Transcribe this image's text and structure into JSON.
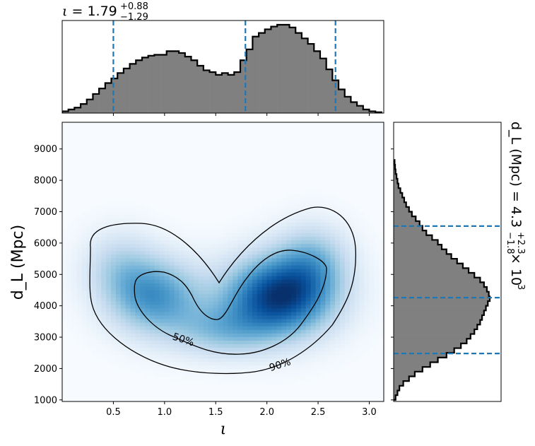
{
  "chart_data": [
    {
      "panel": "top-marginal",
      "type": "histogram",
      "title": "ι = 1.79 +0.88 −1.29",
      "title_parts": {
        "symbol": "ι",
        "median": "1.79",
        "plus": "+0.88",
        "minus": "−1.29"
      },
      "xlim": [
        0,
        3.14159
      ],
      "fill_color": "#808080",
      "edge_color": "#000000",
      "quantile_lines": [
        0.5,
        1.79,
        2.67
      ],
      "quantile_color": "#1f77b4",
      "bins_x": [
        0.0,
        0.06,
        0.12,
        0.18,
        0.24,
        0.3,
        0.36,
        0.42,
        0.48,
        0.54,
        0.6,
        0.66,
        0.72,
        0.78,
        0.84,
        0.9,
        0.96,
        1.02,
        1.08,
        1.14,
        1.2,
        1.26,
        1.32,
        1.38,
        1.44,
        1.5,
        1.56,
        1.62,
        1.68,
        1.74,
        1.8,
        1.86,
        1.92,
        1.98,
        2.04,
        2.1,
        2.16,
        2.22,
        2.28,
        2.34,
        2.4,
        2.46,
        2.52,
        2.58,
        2.64,
        2.7,
        2.76,
        2.82,
        2.88,
        2.94,
        3.0,
        3.06,
        3.12
      ],
      "density": [
        0.02,
        0.04,
        0.06,
        0.1,
        0.15,
        0.21,
        0.27,
        0.33,
        0.38,
        0.44,
        0.49,
        0.54,
        0.58,
        0.61,
        0.63,
        0.64,
        0.64,
        0.68,
        0.68,
        0.66,
        0.62,
        0.58,
        0.52,
        0.47,
        0.45,
        0.42,
        0.44,
        0.42,
        0.45,
        0.58,
        0.7,
        0.84,
        0.88,
        0.92,
        0.95,
        0.97,
        0.97,
        0.94,
        0.88,
        0.82,
        0.76,
        0.68,
        0.6,
        0.48,
        0.36,
        0.26,
        0.18,
        0.12,
        0.08,
        0.04,
        0.02,
        0.01
      ]
    },
    {
      "panel": "joint",
      "type": "heatmap",
      "xlabel": "ι",
      "ylabel": "d_L (Mpc)",
      "xlim": [
        0,
        3.14159
      ],
      "ylim": [
        950,
        9850
      ],
      "xticks": [
        0.5,
        1.0,
        1.5,
        2.0,
        2.5,
        3.0
      ],
      "xtick_labels": [
        "0.5",
        "1.0",
        "1.5",
        "2.0",
        "2.5",
        "3.0"
      ],
      "yticks": [
        1000,
        2000,
        3000,
        4000,
        5000,
        6000,
        7000,
        8000,
        9000
      ],
      "ytick_labels": [
        "1000",
        "2000",
        "3000",
        "4000",
        "5000",
        "6000",
        "7000",
        "8000",
        "9000"
      ],
      "colormap": "Blues",
      "density_peaks": [
        {
          "x": 2.12,
          "y": 4300,
          "weight": 1.0
        },
        {
          "x": 0.9,
          "y": 4300,
          "weight": 0.62
        }
      ],
      "contours": [
        {
          "level": "50%",
          "label": "50%"
        },
        {
          "level": "90%",
          "label": "90%"
        }
      ]
    },
    {
      "panel": "right-marginal",
      "type": "histogram",
      "orientation": "horizontal",
      "title": "d_L (Mpc) = 4.3 +2.3 −1.8 × 10^3",
      "title_parts": {
        "symbol": "d_L (Mpc) = 4.3",
        "plus": "+2.3",
        "minus": "−1.8",
        "suffix": "× 10",
        "exponent": "3"
      },
      "ylim": [
        950,
        9850
      ],
      "fill_color": "#808080",
      "edge_color": "#000000",
      "quantile_lines": [
        2480,
        4260,
        6540
      ],
      "quantile_color": "#1f77b4",
      "bins_y": [
        1000,
        1150,
        1300,
        1450,
        1600,
        1750,
        1900,
        2050,
        2200,
        2350,
        2500,
        2650,
        2800,
        2950,
        3100,
        3250,
        3400,
        3550,
        3700,
        3850,
        4000,
        4150,
        4300,
        4450,
        4600,
        4750,
        4900,
        5050,
        5200,
        5350,
        5500,
        5650,
        5800,
        5950,
        6100,
        6250,
        6400,
        6550,
        6700,
        6850,
        7000,
        7150,
        7300,
        7450,
        7600,
        7750,
        7900,
        8050,
        8200,
        8350,
        8500,
        8650
      ],
      "density": [
        0.02,
        0.04,
        0.06,
        0.1,
        0.16,
        0.22,
        0.3,
        0.38,
        0.46,
        0.55,
        0.63,
        0.7,
        0.76,
        0.8,
        0.84,
        0.87,
        0.9,
        0.92,
        0.94,
        0.96,
        0.98,
        1.0,
        0.99,
        0.97,
        0.94,
        0.9,
        0.84,
        0.78,
        0.72,
        0.66,
        0.6,
        0.55,
        0.5,
        0.46,
        0.4,
        0.34,
        0.3,
        0.27,
        0.23,
        0.19,
        0.16,
        0.13,
        0.11,
        0.09,
        0.07,
        0.05,
        0.04,
        0.03,
        0.02,
        0.015,
        0.01,
        0.005
      ]
    }
  ]
}
